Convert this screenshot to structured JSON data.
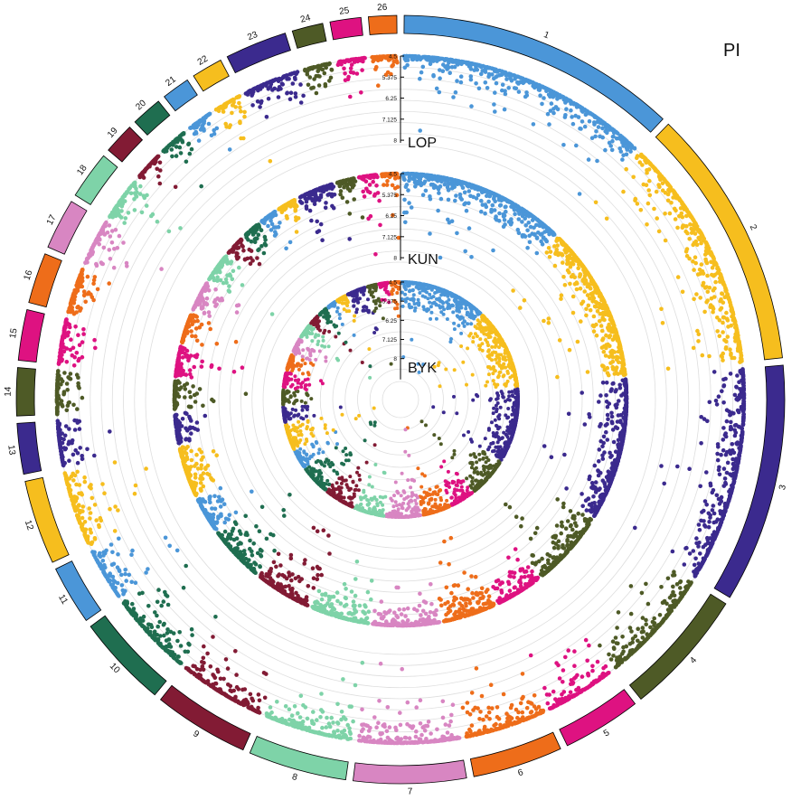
{
  "chart_data": {
    "type": "circular-manhattan",
    "title": "PI",
    "chromosomes": [
      {
        "id": "1",
        "color": "#4B96D8",
        "size": 1.0
      },
      {
        "id": "2",
        "color": "#F6BE1E",
        "size": 0.93
      },
      {
        "id": "3",
        "color": "#3B2A8E",
        "size": 0.85
      },
      {
        "id": "4",
        "color": "#4E5A26",
        "size": 0.45
      },
      {
        "id": "5",
        "color": "#DE1281",
        "size": 0.28
      },
      {
        "id": "6",
        "color": "#EE6D1A",
        "size": 0.32
      },
      {
        "id": "7",
        "color": "#D886C2",
        "size": 0.4
      },
      {
        "id": "8",
        "color": "#7ED3A8",
        "size": 0.35
      },
      {
        "id": "9",
        "color": "#821B34",
        "size": 0.34
      },
      {
        "id": "10",
        "color": "#1F6E50",
        "size": 0.33
      },
      {
        "id": "11",
        "color": "#4B96D8",
        "size": 0.21
      },
      {
        "id": "12",
        "color": "#F6BE1E",
        "size": 0.3
      },
      {
        "id": "13",
        "color": "#3B2A8E",
        "size": 0.18
      },
      {
        "id": "14",
        "color": "#4E5A26",
        "size": 0.17
      },
      {
        "id": "15",
        "color": "#DE1281",
        "size": 0.18
      },
      {
        "id": "16",
        "color": "#EE6D1A",
        "size": 0.18
      },
      {
        "id": "17",
        "color": "#D886C2",
        "size": 0.18
      },
      {
        "id": "18",
        "color": "#7ED3A8",
        "size": 0.17
      },
      {
        "id": "19",
        "color": "#821B34",
        "size": 0.11
      },
      {
        "id": "20",
        "color": "#1F6E50",
        "size": 0.11
      },
      {
        "id": "21",
        "color": "#4B96D8",
        "size": 0.1
      },
      {
        "id": "22",
        "color": "#F6BE1E",
        "size": 0.11
      },
      {
        "id": "23",
        "color": "#3B2A8E",
        "size": 0.22
      },
      {
        "id": "24",
        "color": "#4E5A26",
        "size": 0.11
      },
      {
        "id": "25",
        "color": "#DE1281",
        "size": 0.11
      },
      {
        "id": "26",
        "color": "#EE6D1A",
        "size": 0.1
      }
    ],
    "y_axis": {
      "ticks": [
        "4.5",
        "5.375",
        "6.25",
        "7.125",
        "8"
      ],
      "ylim": [
        4.5,
        8
      ],
      "direction": "inward"
    },
    "tracks": [
      {
        "name": "LOP"
      },
      {
        "name": "KUN"
      },
      {
        "name": "BYK"
      }
    ]
  }
}
